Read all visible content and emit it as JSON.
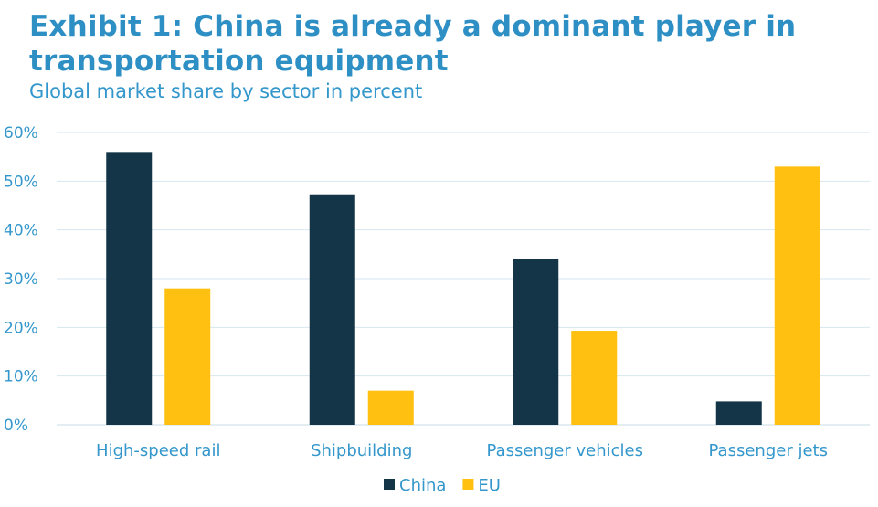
{
  "title": "Exhibit 1:  China is already a dominant player in transportation equipment",
  "subtitle": "Global market share by sector in percent",
  "chart_data": {
    "type": "bar",
    "categories": [
      "High-speed rail",
      "Shipbuilding",
      "Passenger vehicles",
      "Passenger jets"
    ],
    "series": [
      {
        "name": "China",
        "color": "#133547",
        "values": [
          56,
          47.3,
          34,
          4.8
        ]
      },
      {
        "name": "EU",
        "color": "#ffc011",
        "values": [
          28,
          7,
          19.3,
          53
        ]
      }
    ],
    "ylim": [
      0,
      60
    ],
    "yticks": [
      0,
      10,
      20,
      30,
      40,
      50,
      60
    ],
    "ytick_labels": [
      "0%",
      "10%",
      "20%",
      "30%",
      "40%",
      "50%",
      "60%"
    ],
    "grid": true,
    "legend": "bottom-center",
    "xlabel": "",
    "ylabel": ""
  }
}
